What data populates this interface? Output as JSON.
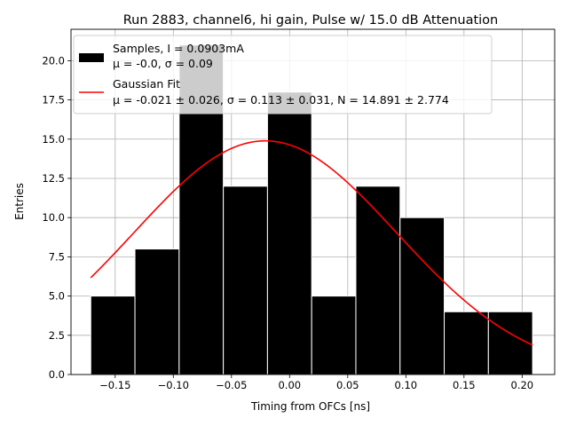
{
  "chart_data": {
    "type": "bar",
    "title": "Run 2883, channel6, hi gain, Pulse w/ 15.0 dB Attenuation",
    "xlabel": "Timing from OFCs [ns]",
    "ylabel": "Entries",
    "xlim": [
      -0.188,
      0.228
    ],
    "ylim": [
      0,
      22
    ],
    "grid": true,
    "xticks": [
      -0.15,
      -0.1,
      -0.05,
      0.0,
      0.05,
      0.1,
      0.15,
      0.2
    ],
    "xtick_labels": [
      "−0.15",
      "−0.10",
      "−0.05",
      "0.00",
      "0.05",
      "0.10",
      "0.15",
      "0.20"
    ],
    "yticks": [
      0.0,
      2.5,
      5.0,
      7.5,
      10.0,
      12.5,
      15.0,
      17.5,
      20.0
    ],
    "ytick_labels": [
      "0.0",
      "2.5",
      "5.0",
      "7.5",
      "10.0",
      "12.5",
      "15.0",
      "17.5",
      "20.0"
    ],
    "bins": {
      "edges": [
        -0.171,
        -0.133,
        -0.095,
        -0.057,
        -0.019,
        0.019,
        0.057,
        0.095,
        0.133,
        0.171,
        0.209
      ],
      "counts": [
        5,
        8,
        21,
        12,
        18,
        5,
        12,
        10,
        4,
        4
      ],
      "color": "#000000",
      "edgecolor": "#ffffff"
    },
    "fit": {
      "type": "gaussian",
      "mu": -0.021,
      "sigma": 0.113,
      "peak": 14.891,
      "x_range": [
        -0.171,
        0.209
      ],
      "color": "#ff0000"
    },
    "legend": {
      "location": "top-left",
      "entries": [
        {
          "line1": "Samples, I = 0.0903mA",
          "line2": "μ = -0.0, σ = 0.09"
        },
        {
          "line1": "Gaussian Fit",
          "line2": "μ = -0.021 ± 0.026, σ = 0.113 ± 0.031, N = 14.891 ± 2.774"
        }
      ]
    }
  }
}
